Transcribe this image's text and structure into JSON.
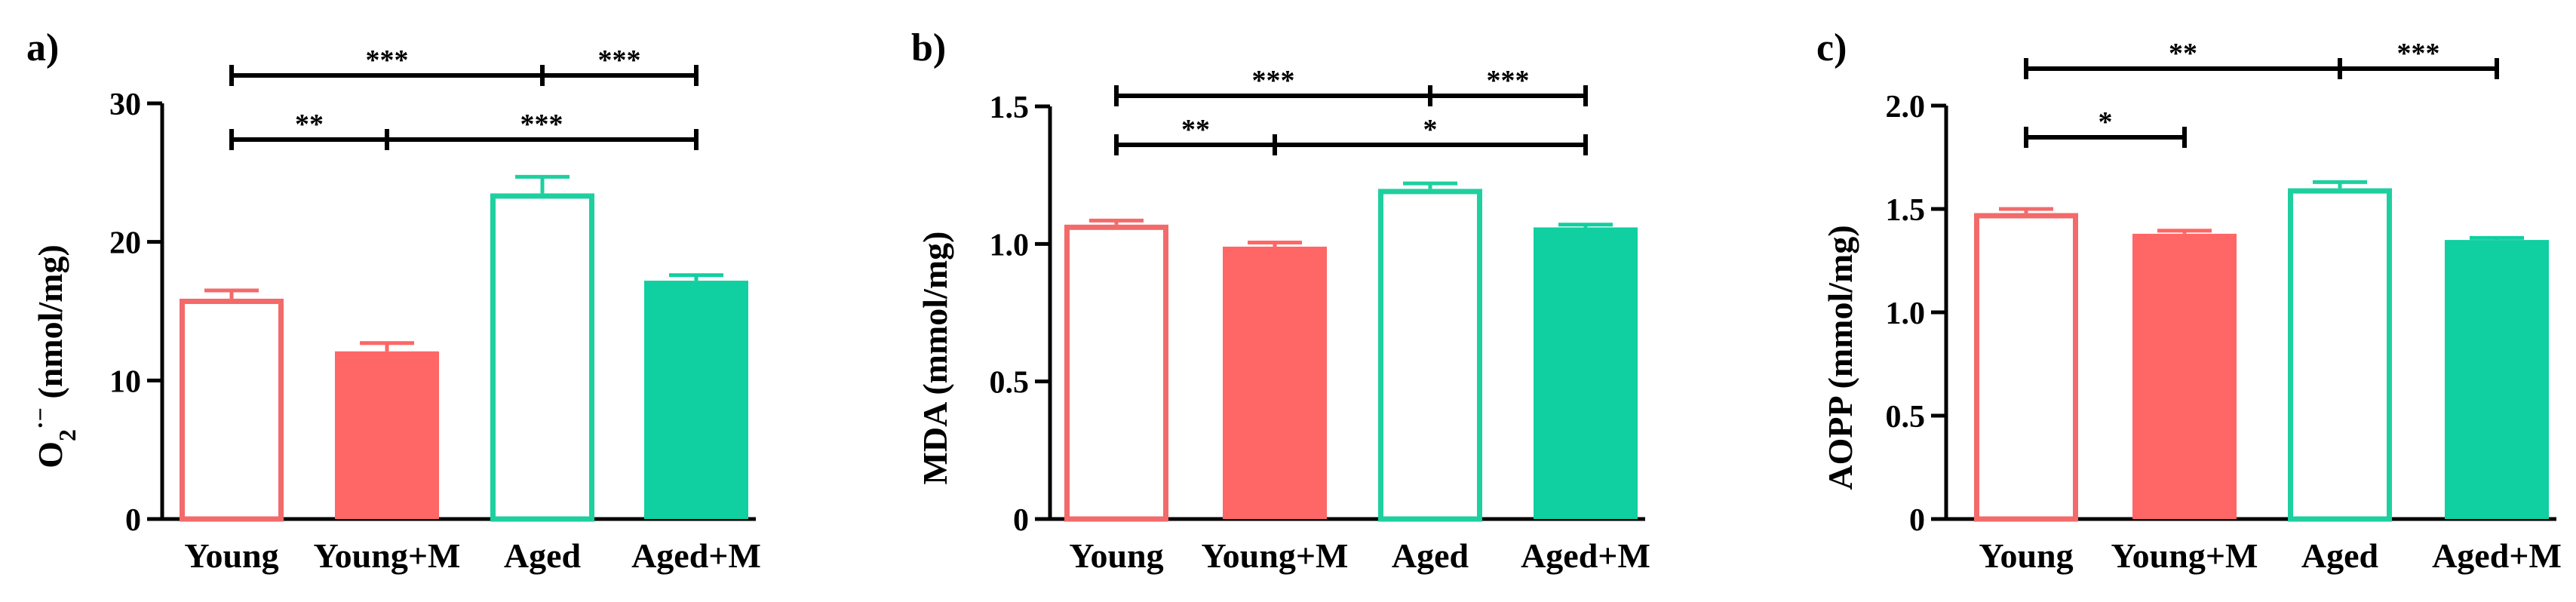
{
  "colors": {
    "young": "#F36A6A",
    "young_m": "#FF6666",
    "aged": "#1ECF9F",
    "aged_m": "#10CFA0",
    "axis": "#000000"
  },
  "chart_data": [
    {
      "panel": "a)",
      "type": "bar",
      "ylabel_main": "O",
      "ylabel_sub": "2",
      "ylabel_sup": "·−",
      "ylabel_rest": " (nmol/mg)",
      "categories": [
        "Young",
        "Young+M",
        "Aged",
        "Aged+M"
      ],
      "values": [
        15.9,
        12.1,
        23.5,
        17.2
      ],
      "errors": [
        0.6,
        0.6,
        1.2,
        0.4
      ],
      "fill": [
        "hollow",
        "solid",
        "hollow",
        "solid"
      ],
      "ylim": [
        0,
        30
      ],
      "yticks": [
        0,
        10,
        20,
        30
      ],
      "tick_labels": [
        "0",
        "10",
        "20",
        "30"
      ],
      "significance": [
        {
          "from": 0,
          "mid": 2,
          "to": 3,
          "left_label": "***",
          "right_label": "***",
          "level": 2
        },
        {
          "from": 0,
          "mid": 1,
          "to": 3,
          "left_label": "**",
          "right_label": "***",
          "level": 1
        }
      ]
    },
    {
      "panel": "b)",
      "type": "bar",
      "ylabel_main": "MDA (mmol/mg)",
      "ylabel_sub": "",
      "ylabel_sup": "",
      "ylabel_rest": "",
      "categories": [
        "Young",
        "Young+M",
        "Aged",
        "Aged+M"
      ],
      "values": [
        1.07,
        0.99,
        1.2,
        1.06
      ],
      "errors": [
        0.015,
        0.015,
        0.02,
        0.01
      ],
      "fill": [
        "hollow",
        "solid",
        "hollow",
        "solid"
      ],
      "ylim": [
        0,
        1.5
      ],
      "yticks": [
        0,
        0.5,
        1.0,
        1.5
      ],
      "tick_labels": [
        "0",
        "0.5",
        "1.0",
        "1.5"
      ],
      "significance": [
        {
          "from": 0,
          "mid": 2,
          "to": 3,
          "left_label": "***",
          "right_label": "***",
          "level": 2
        },
        {
          "from": 0,
          "mid": 1,
          "to": 3,
          "left_label": "**",
          "right_label": "*",
          "level": 1
        }
      ]
    },
    {
      "panel": "c)",
      "type": "bar",
      "ylabel_main": "AOPP (mmol/mg)",
      "ylabel_sub": "",
      "ylabel_sup": "",
      "ylabel_rest": "",
      "categories": [
        "Young",
        "Young+M",
        "Aged",
        "Aged+M"
      ],
      "values": [
        1.48,
        1.38,
        1.6,
        1.35
      ],
      "errors": [
        0.02,
        0.015,
        0.03,
        0.01
      ],
      "fill": [
        "hollow",
        "solid",
        "hollow",
        "solid"
      ],
      "ylim": [
        0,
        2.0
      ],
      "yticks": [
        0,
        0.5,
        1.0,
        1.5,
        2.0
      ],
      "tick_labels": [
        "0",
        "0.5",
        "1.0",
        "1.5",
        "2.0"
      ],
      "significance": [
        {
          "from": 0,
          "mid": 2,
          "to": 3,
          "left_label": "**",
          "right_label": "***",
          "level": 2
        },
        {
          "from": 0,
          "mid": null,
          "to": 1,
          "left_label": "*",
          "right_label": "",
          "level": 1
        }
      ]
    }
  ]
}
